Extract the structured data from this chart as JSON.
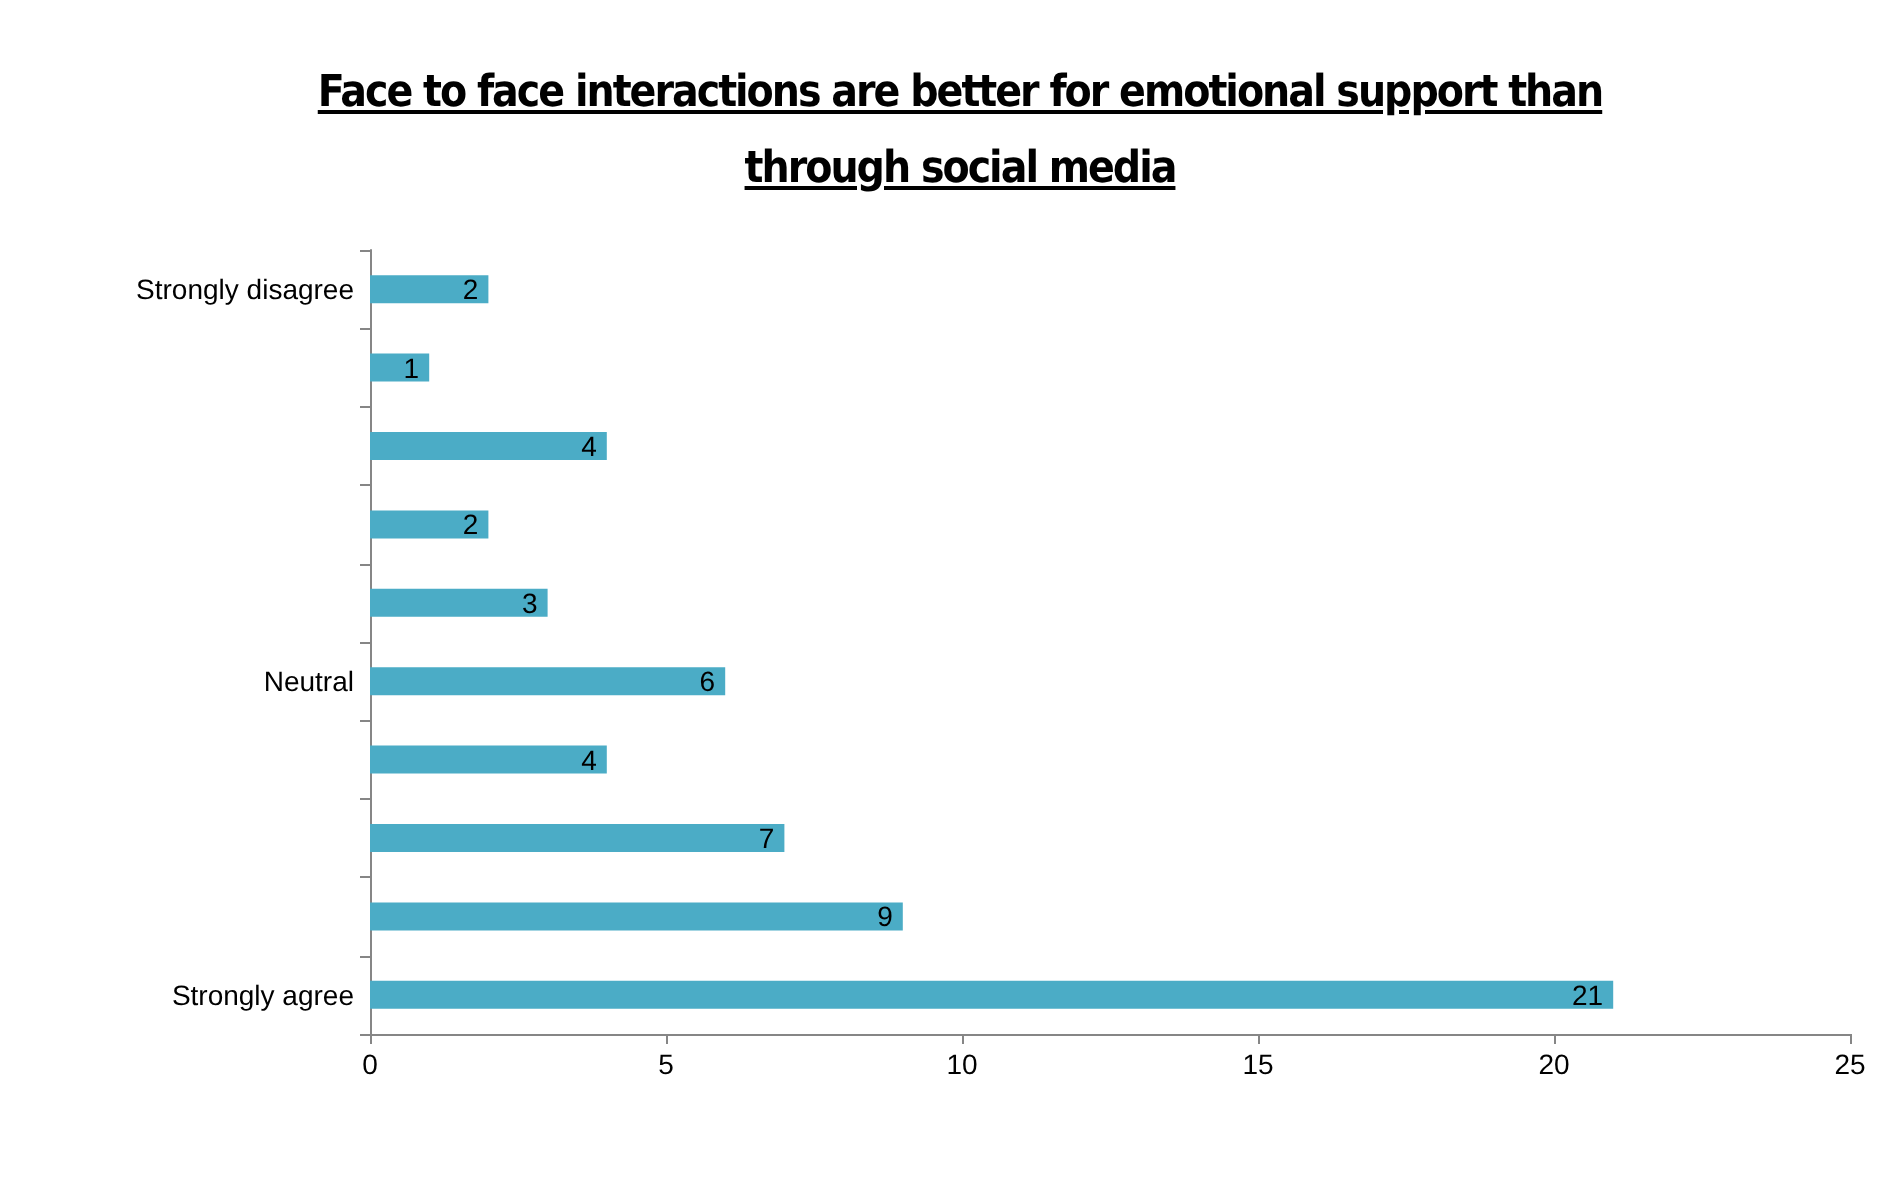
{
  "chart_data": {
    "type": "bar",
    "title": "Face to face interactions are better for emotional support than through social media",
    "orientation": "horizontal",
    "categories": [
      "Strongly disagree",
      null,
      null,
      null,
      null,
      "Neutral",
      null,
      null,
      null,
      "Strongly agree"
    ],
    "values": [
      2,
      1,
      4,
      2,
      3,
      6,
      4,
      7,
      9,
      21
    ],
    "color": "#4bacc6",
    "xlim": [
      0,
      25
    ],
    "xticks": [
      0,
      5,
      10,
      15,
      20,
      25
    ],
    "data_labels": true
  }
}
